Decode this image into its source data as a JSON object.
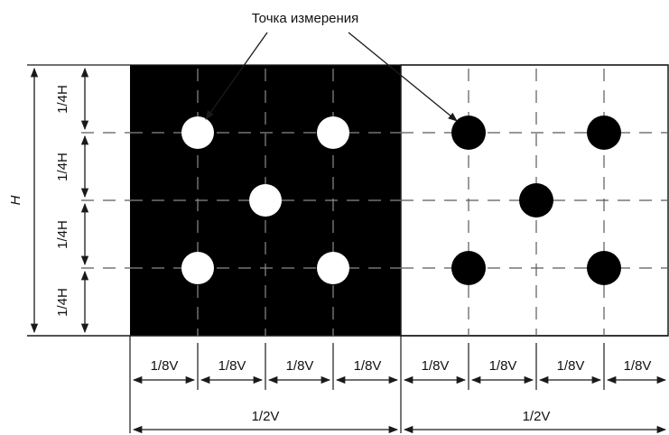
{
  "callout": {
    "label": "Точка измерения"
  },
  "vertical": {
    "total_label": "H",
    "quarter_labels": [
      "1/4H",
      "1/4H",
      "1/4H",
      "1/4H"
    ]
  },
  "horizontal": {
    "eighth_labels": [
      "1/8V",
      "1/8V",
      "1/8V",
      "1/8V",
      "1/8V",
      "1/8V",
      "1/8V",
      "1/8V"
    ],
    "half_labels": [
      "1/2V",
      "1/2V"
    ]
  },
  "colors": {
    "black_field": "#000000",
    "white_field": "#ffffff",
    "line": "#1a1a1a",
    "dash": "#5a5a5a"
  }
}
